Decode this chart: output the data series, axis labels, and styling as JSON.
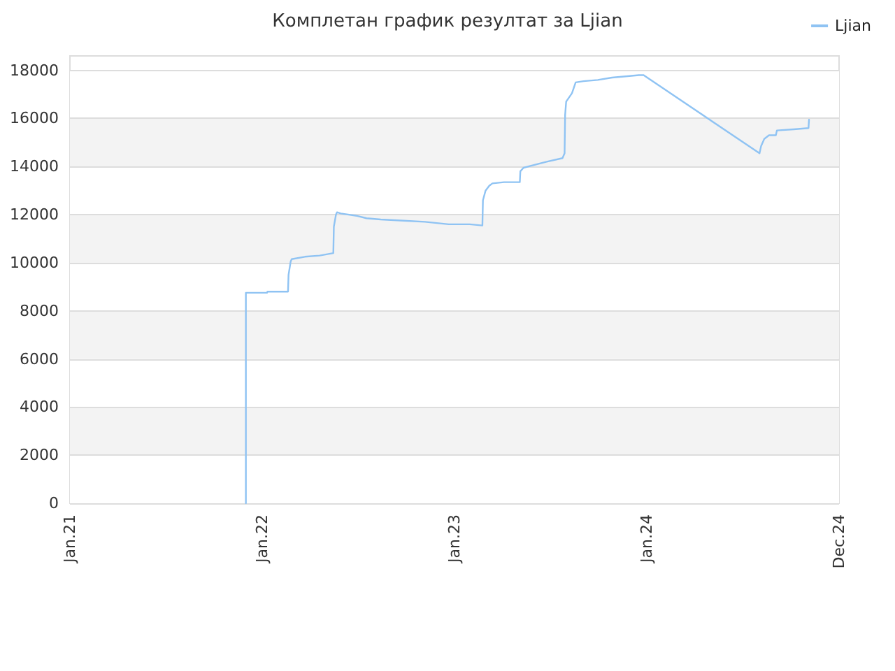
{
  "chart_data": {
    "type": "line",
    "title": "Комплетан график резултат за Ljian",
    "x": [
      "2021-12-01",
      "2021-12-01",
      "2022-01-10",
      "2022-01-11",
      "2022-02-19",
      "2022-02-20",
      "2022-02-24",
      "2022-02-26",
      "2022-03-23",
      "2022-04-20",
      "2022-05-16",
      "2022-05-17",
      "2022-05-21",
      "2022-05-23",
      "2022-05-30",
      "2022-06-30",
      "2022-07-18",
      "2022-08-14",
      "2022-09-27",
      "2022-11-06",
      "2022-12-21",
      "2023-01-30",
      "2023-02-23",
      "2023-02-24",
      "2023-03-01",
      "2023-03-08",
      "2023-03-14",
      "2023-04-05",
      "2023-05-05",
      "2023-05-06",
      "2023-05-12",
      "2023-05-29",
      "2023-06-25",
      "2023-07-25",
      "2023-07-29",
      "2023-07-30",
      "2023-08-01",
      "2023-08-12",
      "2023-08-19",
      "2023-09-03",
      "2023-09-30",
      "2023-10-27",
      "2023-11-22",
      "2023-12-17",
      "2023-12-26",
      "2024-08-02",
      "2024-08-05",
      "2024-08-11",
      "2024-08-20",
      "2024-09-02",
      "2024-09-04",
      "2024-10-06",
      "2024-11-03",
      "2024-11-04"
    ],
    "series": [
      {
        "name": "Ljian",
        "color": "#8fc3f3",
        "values": [
          0,
          8750,
          8750,
          8800,
          8800,
          9500,
          10050,
          10150,
          10250,
          10300,
          10400,
          11500,
          12000,
          12100,
          12050,
          11950,
          11850,
          11800,
          11750,
          11700,
          11600,
          11600,
          11550,
          12600,
          13000,
          13200,
          13300,
          13350,
          13350,
          13800,
          13950,
          14050,
          14200,
          14350,
          14550,
          16150,
          16700,
          17050,
          17500,
          17550,
          17600,
          17700,
          17750,
          17800,
          17800,
          14550,
          14850,
          15150,
          15300,
          15300,
          15500,
          15550,
          15600,
          15950
        ]
      }
    ],
    "xlim": [
      "2021-01-01",
      "2024-12-31"
    ],
    "xticks": [
      {
        "value": "2021-01-01",
        "label": "Jan.21"
      },
      {
        "value": "2022-01-01",
        "label": "Jan.22"
      },
      {
        "value": "2023-01-01",
        "label": "Jan.23"
      },
      {
        "value": "2024-01-01",
        "label": "Jan.24"
      },
      {
        "value": "2024-12-31",
        "label": "Dec.24"
      }
    ],
    "ylim": [
      0,
      18600
    ],
    "yticks": [
      0,
      2000,
      4000,
      6000,
      8000,
      10000,
      12000,
      14000,
      16000,
      18000
    ],
    "grid": "y",
    "legend": "top right",
    "marker": "none",
    "line_style": "solid"
  }
}
